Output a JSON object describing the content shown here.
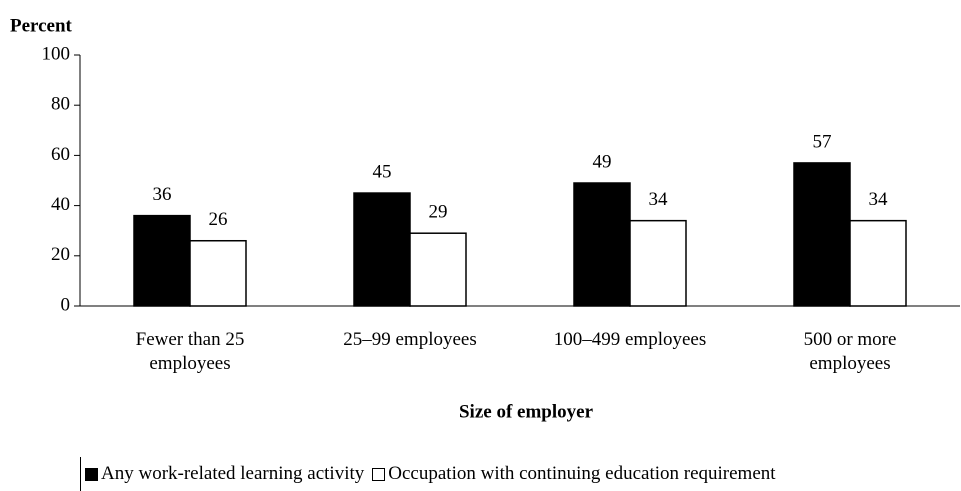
{
  "chart_data": {
    "type": "bar",
    "y_label": "Percent",
    "x_label": "Size of employer",
    "categories": [
      "Fewer than 25 employees",
      "25–99 employees",
      "100–499 employees",
      "500 or more employees"
    ],
    "series": [
      {
        "name": "Any work-related learning activity",
        "color": "#000000",
        "values": [
          36,
          45,
          49,
          57
        ]
      },
      {
        "name": "Occupation with continuing education requirement",
        "color": "#ffffff",
        "values": [
          26,
          29,
          34,
          34
        ]
      }
    ],
    "ylim": [
      0,
      100
    ],
    "yticks": [
      0,
      20,
      40,
      60,
      80,
      100
    ]
  }
}
